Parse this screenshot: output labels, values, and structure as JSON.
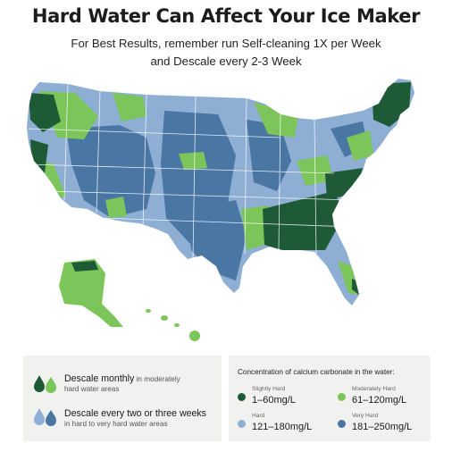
{
  "title": "Hard Water Can Affect Your Ice Maker",
  "subtitle_line1": "For Best Results, remember run Self-cleaning 1X per Week",
  "subtitle_line2": "and Descale every 2-3 Week",
  "colors": {
    "slightly_hard": "#1f5a36",
    "moderately_hard": "#7cc55a",
    "hard": "#8eaed4",
    "very_hard": "#4a76a3",
    "panel": "#f1f1ef"
  },
  "legend_left": {
    "monthly_main": "Descale monthly",
    "monthly_tail": " in moderately",
    "monthly_sub": "hard water areas",
    "monthly_icon": "green-water-drops-icon",
    "biweekly_main": "Descale every two or three weeks",
    "biweekly_sub": "in hard to very hard water areas",
    "biweekly_icon": "blue-water-drops-icon"
  },
  "legend_right": {
    "title": "Concentration of calcium carbonate in the water:",
    "categories": [
      {
        "level": "Slightly Hard",
        "range": "1–60mg/L",
        "color": "#1f5a36"
      },
      {
        "level": "Moderately Hard",
        "range": "61–120mg/L",
        "color": "#7cc55a"
      },
      {
        "level": "Hard",
        "range": "121–180mg/L",
        "color": "#8eaed4"
      },
      {
        "level": "Very Hard",
        "range": "181–250mg/L",
        "color": "#4a76a3"
      }
    ]
  }
}
